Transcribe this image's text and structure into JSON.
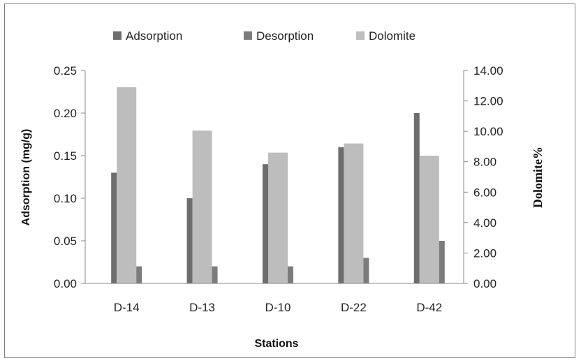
{
  "chart_data": {
    "type": "bar",
    "categories": [
      "D-14",
      "D-13",
      "D-10",
      "D-22",
      "D-42"
    ],
    "series": [
      {
        "name": "Adsorption",
        "axis": "left",
        "color": "#6d6d6d",
        "values": [
          0.13,
          0.1,
          0.14,
          0.16,
          0.2
        ]
      },
      {
        "name": "Desorption",
        "axis": "left",
        "color": "#7c7c7c",
        "values": [
          0.02,
          0.02,
          0.02,
          0.03,
          0.05
        ]
      },
      {
        "name": "Dolomite",
        "axis": "right",
        "color": "#bdbdbd",
        "values": [
          12.9,
          10.05,
          8.6,
          9.2,
          8.4
        ]
      }
    ],
    "xlabel": "Stations",
    "ylabel": "Adsorption (mg/g)",
    "y2label": "Dolomite%",
    "ylim": [
      0,
      0.25
    ],
    "y2lim": [
      0,
      14
    ],
    "yticks": [
      "0.00",
      "0.05",
      "0.10",
      "0.15",
      "0.20",
      "0.25"
    ],
    "y2ticks": [
      "0.00",
      "2.00",
      "4.00",
      "6.00",
      "8.00",
      "10.00",
      "12.00",
      "14.00"
    ],
    "legend_position": "top",
    "grid": false
  }
}
